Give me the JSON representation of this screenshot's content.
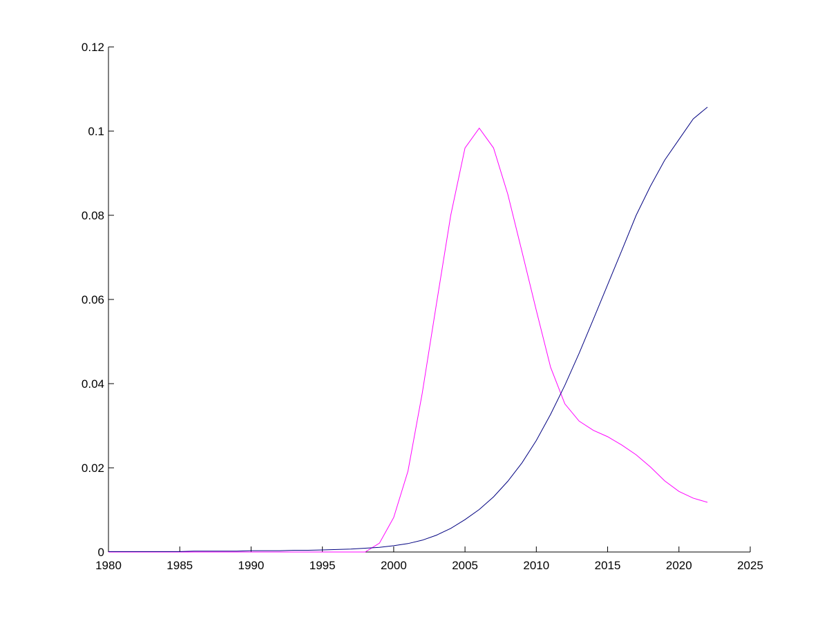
{
  "chart_data": {
    "type": "line",
    "x": [
      1980,
      1981,
      1982,
      1983,
      1984,
      1985,
      1986,
      1987,
      1988,
      1989,
      1990,
      1991,
      1992,
      1993,
      1994,
      1995,
      1996,
      1997,
      1998,
      1999,
      2000,
      2001,
      2002,
      2003,
      2004,
      2005,
      2006,
      2007,
      2008,
      2009,
      2010,
      2011,
      2012,
      2013,
      2014,
      2015,
      2016,
      2017,
      2018,
      2019,
      2020,
      2021,
      2022
    ],
    "series": [
      {
        "color": "#ff00ff",
        "values": [
          0,
          0,
          0,
          0,
          0,
          0,
          0,
          0,
          0,
          0,
          0,
          0,
          0,
          0,
          0,
          0,
          0,
          0,
          0,
          0.0021,
          0.0082,
          0.0192,
          0.0377,
          0.059,
          0.08,
          0.096,
          0.1007,
          0.096,
          0.085,
          0.0713,
          0.0574,
          0.0439,
          0.0352,
          0.0311,
          0.0289,
          0.0274,
          0.0254,
          0.0231,
          0.0202,
          0.0169,
          0.0144,
          0.0128,
          0.0118
        ]
      },
      {
        "color": "#000080",
        "values": [
          0.0001,
          0.0001,
          0.0001,
          0.0001,
          0.0001,
          0.0001,
          0.0002,
          0.0002,
          0.0002,
          0.0002,
          0.0003,
          0.0003,
          0.0003,
          0.0004,
          0.0004,
          0.0005,
          0.0006,
          0.0007,
          0.0009,
          0.0011,
          0.0015,
          0.002,
          0.0028,
          0.004,
          0.0056,
          0.0077,
          0.0101,
          0.0131,
          0.0168,
          0.0212,
          0.0265,
          0.0327,
          0.0396,
          0.0472,
          0.0553,
          0.0635,
          0.0717,
          0.08,
          0.0869,
          0.0931,
          0.098,
          0.1029,
          0.1057
        ]
      }
    ],
    "xlim": [
      1980,
      2025
    ],
    "xticks": [
      1980,
      1985,
      1990,
      1995,
      2000,
      2005,
      2010,
      2015,
      2020,
      2025
    ],
    "ylim": [
      0,
      0.12
    ],
    "yticks": [
      0,
      0.02,
      0.04,
      0.06,
      0.08,
      0.1,
      0.12
    ]
  }
}
